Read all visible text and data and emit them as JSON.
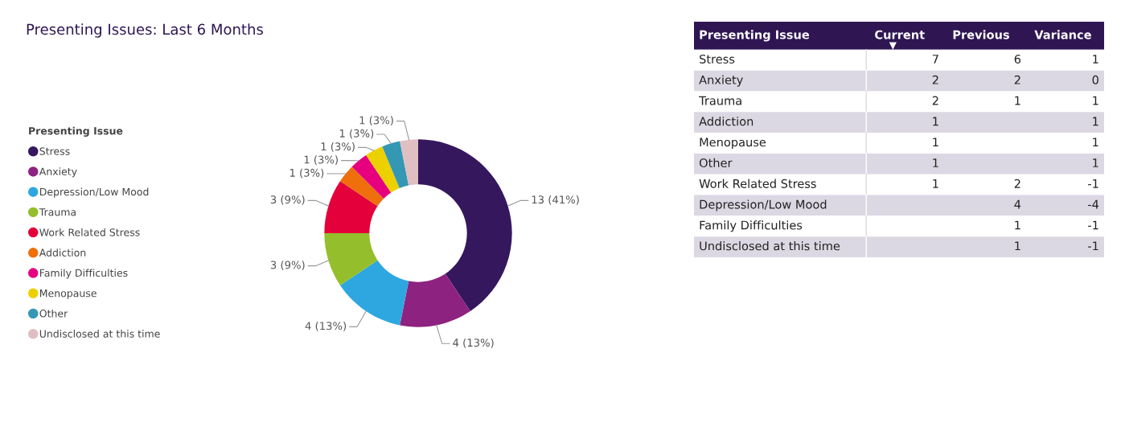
{
  "chart_data": [
    {
      "type": "donut",
      "title": "Presenting Issues: Last 6 Months",
      "legend_title": "Presenting Issue",
      "legend": "left",
      "categories": [
        "Stress",
        "Anxiety",
        "Depression/Low Mood",
        "Trauma",
        "Work Related Stress",
        "Addiction",
        "Family Difficulties",
        "Menopause",
        "Other",
        "Undisclosed at this time"
      ],
      "values": [
        13,
        4,
        4,
        3,
        3,
        1,
        1,
        1,
        1,
        1
      ],
      "colors": [
        "#35175e",
        "#8e2280",
        "#2ea7e0",
        "#95be2c",
        "#e4003a",
        "#ee6f0c",
        "#e6007e",
        "#edd000",
        "#3498b5",
        "#e0bfc2"
      ],
      "value_labels": [
        "13 (41%)",
        "4 (13%)",
        "4 (13%)",
        "3 (9%)",
        "3 (9%)",
        "1 (3%)",
        "1 (3%)",
        "1 (3%)",
        "1 (3%)",
        "1 (3%)"
      ]
    },
    {
      "type": "heatmap",
      "ylabel": "Presenting Issue",
      "categories": [
        "Current",
        "Previous",
        "Variance"
      ],
      "y_categories": [
        "Stress",
        "Anxiety",
        "Trauma",
        "Addiction",
        "Menopause",
        "Other",
        "Work Related Stress",
        "Depression/Low Mood",
        "Family Difficulties",
        "Undisclosed at this time"
      ],
      "cells": [
        [
          7,
          6,
          1
        ],
        [
          2,
          2,
          0
        ],
        [
          2,
          1,
          1
        ],
        [
          1,
          null,
          1
        ],
        [
          1,
          null,
          1
        ],
        [
          1,
          null,
          1
        ],
        [
          1,
          2,
          -1
        ],
        [
          null,
          4,
          -4
        ],
        [
          null,
          1,
          -1
        ],
        [
          null,
          1,
          -1
        ]
      ],
      "colors": [
        "#ffffff",
        "#dcd8e3"
      ],
      "color": "#2f1653",
      "data_labels": true
    }
  ]
}
